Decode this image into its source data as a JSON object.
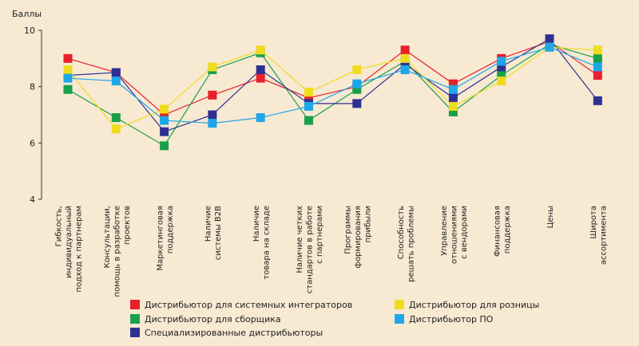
{
  "chart_data": {
    "type": "line",
    "ylabel": "Баллы",
    "ylim": [
      4,
      10
    ],
    "yticks": [
      "4",
      "6",
      "8",
      "10"
    ],
    "grid": false,
    "legend_position": "bottom",
    "categories": [
      [
        "Гибкость,",
        "индивидуальный",
        "подход к партнерам"
      ],
      [
        "Консультации,",
        "помощь в разработке",
        "проектов"
      ],
      [
        "Маркетинговая",
        "поддержка"
      ],
      [
        "Наличие",
        "системы B2B"
      ],
      [
        "Наличие",
        "товара на складе"
      ],
      [
        "Наличие четких",
        "стандартов в работе",
        "с партнерами"
      ],
      [
        "Программы",
        "формирования",
        "прибыли"
      ],
      [
        "Способность",
        "решать проблемы"
      ],
      [
        "Управление",
        "отношениями",
        "с вендорами"
      ],
      [
        "Финансовая",
        "поддержка"
      ],
      [
        "Цены"
      ],
      [
        "Широта",
        "ассортимента"
      ]
    ],
    "series": [
      {
        "name": "Дистрибьютор для системных интеграторов",
        "color": "#e8202a",
        "values": [
          9.0,
          8.5,
          7.0,
          7.7,
          8.3,
          7.6,
          8.0,
          9.3,
          8.1,
          9.0,
          9.6,
          8.4
        ]
      },
      {
        "name": "Дистрибьютор для сборщика",
        "color": "#1aa04a",
        "values": [
          7.9,
          6.9,
          5.9,
          8.6,
          9.2,
          6.8,
          7.9,
          8.9,
          7.1,
          8.4,
          9.5,
          9.0
        ]
      },
      {
        "name": "Специализированные дистрибьюторы",
        "color": "#2e3192",
        "values": [
          8.4,
          8.5,
          6.4,
          7.0,
          8.6,
          7.4,
          7.4,
          8.8,
          7.6,
          8.7,
          9.7,
          7.5
        ]
      },
      {
        "name": "Дистрибьютор для розницы",
        "color": "#f0dc1e",
        "values": [
          8.6,
          6.5,
          7.2,
          8.7,
          9.3,
          7.8,
          8.6,
          9.0,
          7.3,
          8.2,
          9.4,
          9.3
        ]
      },
      {
        "name": "Дистрибьютор ПО",
        "color": "#1ea7e8",
        "values": [
          8.3,
          8.2,
          6.8,
          6.7,
          6.9,
          7.3,
          8.1,
          8.6,
          7.9,
          8.9,
          9.4,
          8.7
        ]
      }
    ]
  }
}
